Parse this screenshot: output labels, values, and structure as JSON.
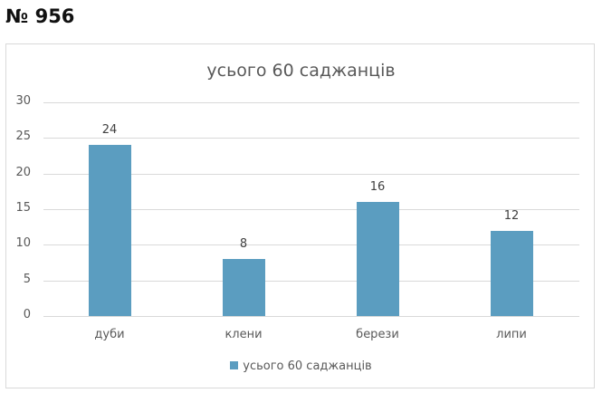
{
  "header": {
    "problem_number": "№ 956"
  },
  "chart_data": {
    "type": "bar",
    "title": "усього 60 саджанців",
    "categories": [
      "дуби",
      "клени",
      "берези",
      "липи"
    ],
    "series": [
      {
        "name": "усього 60 саджанців",
        "values": [
          24,
          8,
          16,
          12
        ],
        "color": "#5b9dc0"
      }
    ],
    "values": [
      24,
      8,
      16,
      12
    ],
    "data_labels": [
      "24",
      "8",
      "16",
      "12"
    ],
    "xlabel": "",
    "ylabel": "",
    "ylim": [
      0,
      30
    ],
    "yticks": [
      "0",
      "5",
      "10",
      "15",
      "20",
      "25",
      "30"
    ],
    "grid": true,
    "legend_position": "bottom"
  }
}
